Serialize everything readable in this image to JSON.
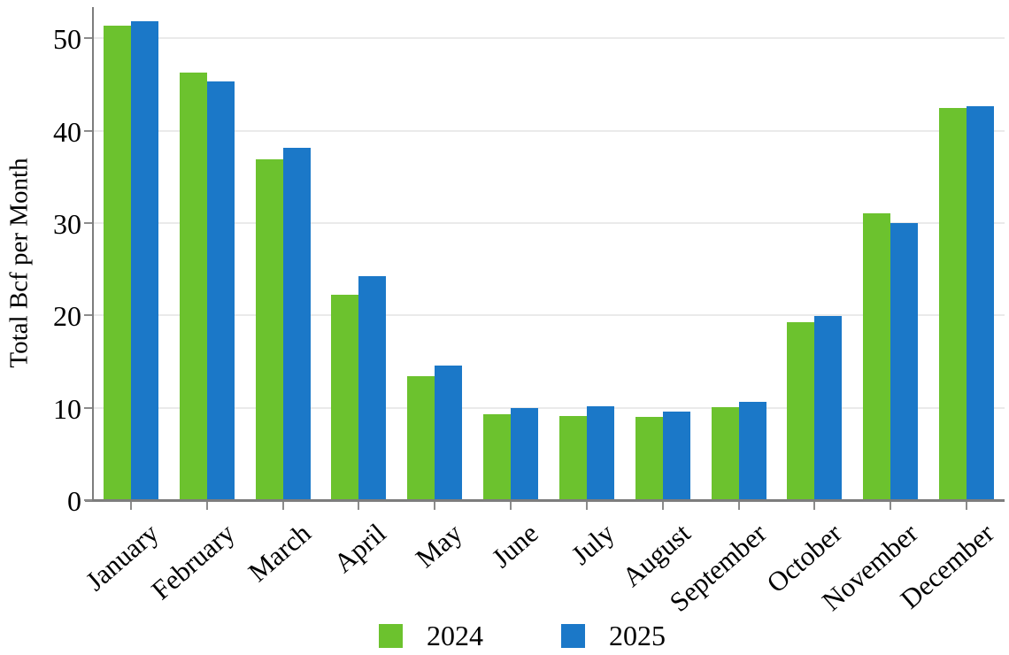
{
  "chart_data": {
    "type": "bar",
    "title": "",
    "xlabel": "",
    "ylabel": "Total Bcf per Month",
    "categories": [
      "January",
      "February",
      "March",
      "April",
      "May",
      "June",
      "July",
      "August",
      "September",
      "October",
      "November",
      "December"
    ],
    "series": [
      {
        "name": "2024",
        "color": "#6cc22e",
        "values": [
          51.4,
          46.3,
          36.9,
          22.2,
          13.4,
          9.3,
          9.1,
          9.0,
          10.1,
          19.3,
          31.1,
          42.5
        ]
      },
      {
        "name": "2025",
        "color": "#1b78c8",
        "values": [
          51.9,
          45.3,
          38.2,
          24.3,
          14.6,
          10.0,
          10.2,
          9.6,
          10.6,
          19.9,
          30.0,
          42.7
        ]
      }
    ],
    "yticks": [
      0,
      10,
      20,
      30,
      40,
      50
    ],
    "ylim": [
      0,
      53.4
    ],
    "grid": true,
    "legend_position": "bottom",
    "axis_color": "#7d7d7d",
    "gridline_color": "#eaeaea",
    "text_color": "#000000",
    "background_color": "#ffffff"
  }
}
